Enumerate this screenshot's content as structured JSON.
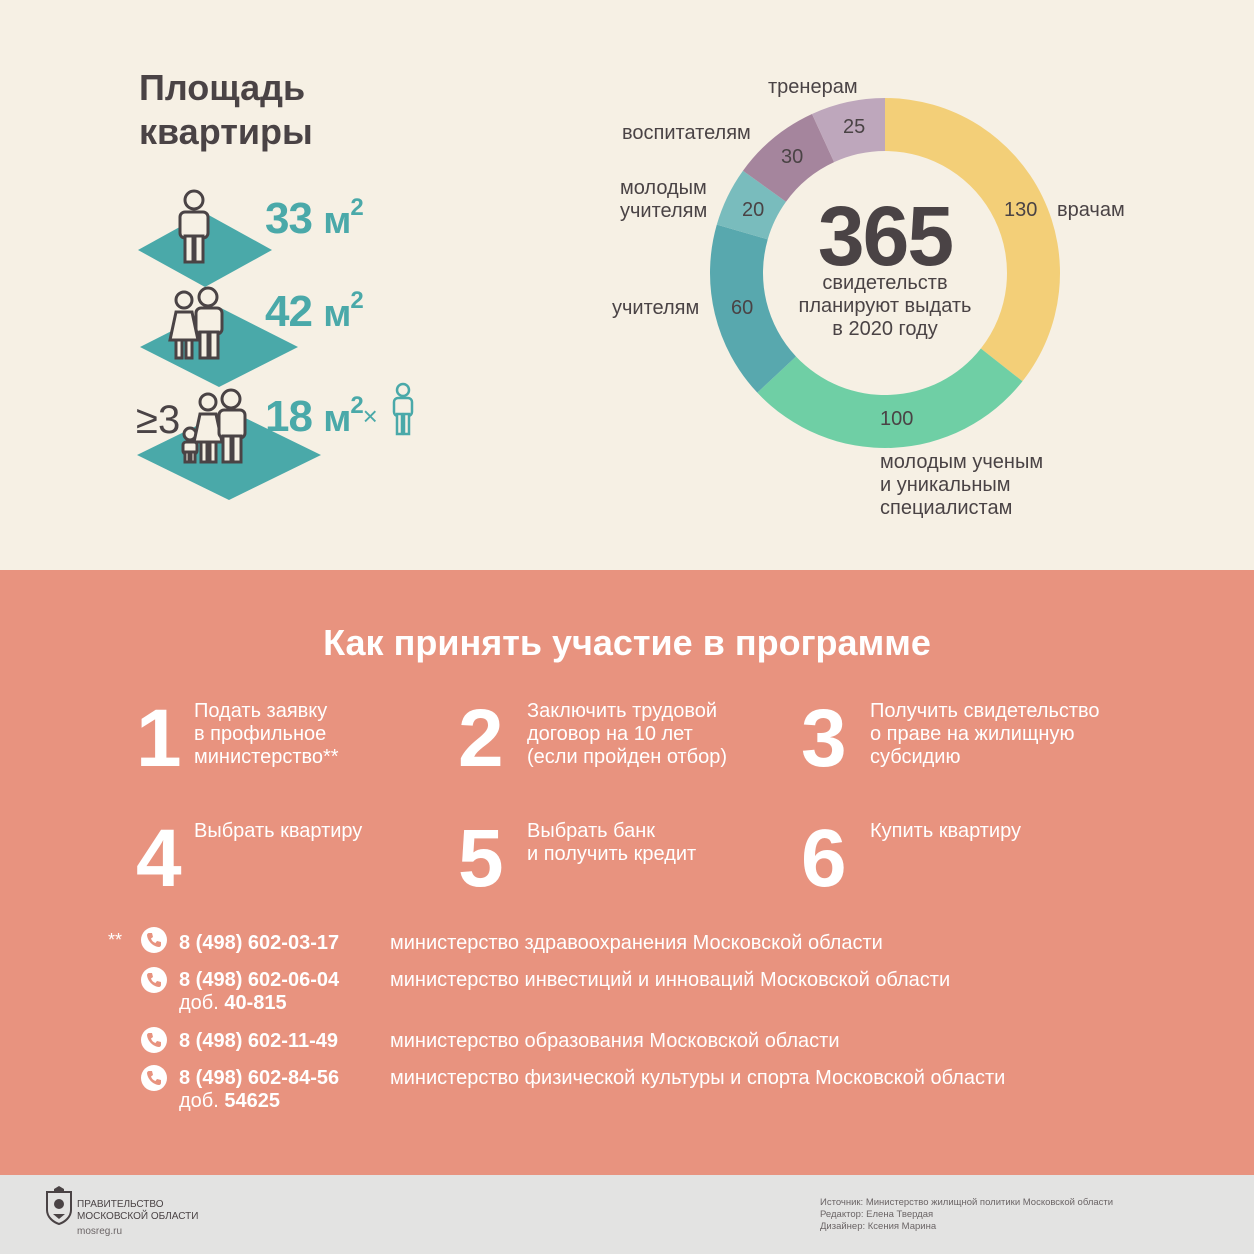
{
  "colors": {
    "top_bg": "#f6f0e4",
    "middle_bg": "#e8937f",
    "footer_bg": "#e3e3e2",
    "teal": "#4aa9a9",
    "text_dark": "#4a4345"
  },
  "area": {
    "title": "Площадь\nквартиры",
    "rows": [
      {
        "value": "33",
        "unit": "м",
        "sup": "2",
        "icon": "single-person-icon"
      },
      {
        "value": "42",
        "unit": "м",
        "sup": "2",
        "icon": "couple-icon"
      },
      {
        "value": "18",
        "unit": "м",
        "sup": "2",
        "times": "×",
        "prefix": "≥3",
        "icon": "family-icon"
      }
    ]
  },
  "donut": {
    "center_number": "365",
    "center_text": "свидетельств\nпланируют выдать\nв 2020 году",
    "segments": [
      {
        "label": "врачам",
        "value": "130",
        "color": "#f3cf78"
      },
      {
        "label": "молодым ученым\nи уникальным\nспециалистам",
        "value": "100",
        "color": "#6fcfa5"
      },
      {
        "label": "учителям",
        "value": "60",
        "color": "#58a8ae"
      },
      {
        "label": "молодым\nучителям",
        "value": "20",
        "color": "#79bcbd"
      },
      {
        "label": "воспитателям",
        "value": "30",
        "color": "#a5859d"
      },
      {
        "label": "тренерам",
        "value": "25",
        "color": "#bea7bc"
      }
    ]
  },
  "how": {
    "title": "Как принять участие в программе",
    "steps": [
      {
        "num": "1",
        "text": "Подать заявку\nв профильное\nминистерство**"
      },
      {
        "num": "2",
        "text": "Заключить трудовой\nдоговор на 10 лет\n(если пройден отбор)"
      },
      {
        "num": "3",
        "text": "Получить свидетельство\nо праве на жилищную\nсубсидию"
      },
      {
        "num": "4",
        "text": "Выбрать квартиру"
      },
      {
        "num": "5",
        "text": "Выбрать банк\nи получить кредит"
      },
      {
        "num": "6",
        "text": "Купить квартиру"
      }
    ]
  },
  "contacts": {
    "footnote_mark": "**",
    "items": [
      {
        "phone": "8 (498) 602-03-17",
        "ext_label": "",
        "ext": "",
        "ministry": "министерство здравоохранения Московской области"
      },
      {
        "phone": "8 (498) 602-06-04",
        "ext_label": "доб.",
        "ext": "40-815",
        "ministry": "министерство инвестиций и инноваций Московской области"
      },
      {
        "phone": "8 (498) 602-11-49",
        "ext_label": "",
        "ext": "",
        "ministry": "министерство образования Московской области"
      },
      {
        "phone": "8 (498) 602-84-56",
        "ext_label": "доб.",
        "ext": "54625",
        "ministry": "министерство физической культуры и спорта Московской области"
      }
    ]
  },
  "footer": {
    "gov_name": "ПРАВИТЕЛЬСТВО\nМОСКОВСКОЙ ОБЛАСТИ",
    "site": "mosreg.ru",
    "source": "Источник: Министерство жилищной политики Московской области",
    "editor": "Редактор: Елена Твердая",
    "designer": "Дизайнер: Ксения Марина"
  }
}
